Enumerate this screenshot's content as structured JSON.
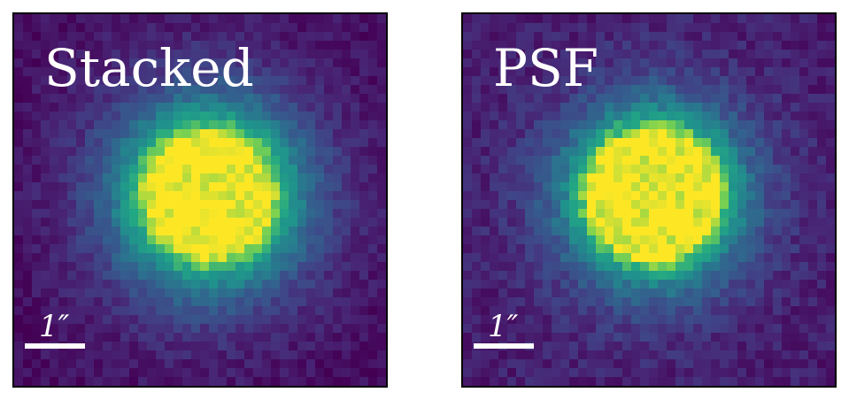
{
  "panels": [
    {
      "label": "Stacked",
      "scale_label": "1″"
    },
    {
      "label": "PSF",
      "scale_label": "1″"
    }
  ],
  "colors": {
    "colormap": "viridis",
    "saturated_core": "#fde725",
    "background": "#440154",
    "frame": "#000000",
    "annotation": "#ffffff"
  }
}
